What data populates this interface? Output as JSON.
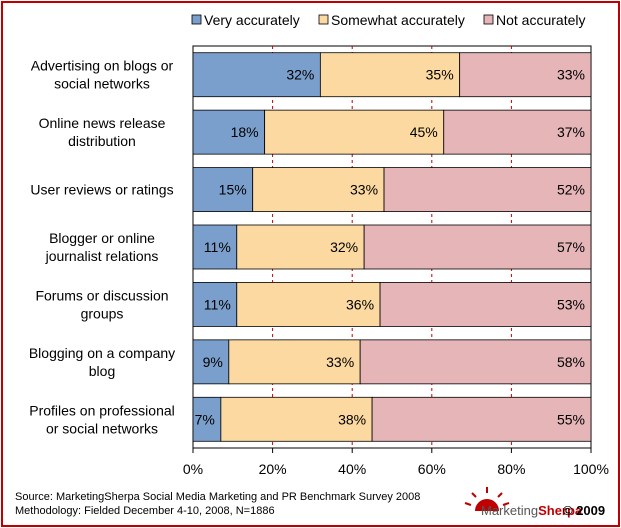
{
  "chart_data": {
    "type": "bar",
    "orientation": "horizontal",
    "stacked": true,
    "categories": [
      [
        "Advertising on blogs or",
        "social networks"
      ],
      [
        "Online news release",
        "distribution"
      ],
      [
        "User reviews or ratings"
      ],
      [
        "Blogger or online",
        "journalist relations"
      ],
      [
        "Forums or discussion",
        "groups"
      ],
      [
        "Blogging on a company",
        "blog"
      ],
      [
        "Profiles on professional",
        "or social networks"
      ]
    ],
    "series": [
      {
        "name": "Very accurately",
        "color": "#7a9fcc",
        "values": [
          32,
          18,
          15,
          11,
          11,
          9,
          7
        ]
      },
      {
        "name": "Somewhat accurately",
        "color": "#fbd9a0",
        "values": [
          35,
          45,
          33,
          32,
          36,
          33,
          38
        ]
      },
      {
        "name": "Not accurately",
        "color": "#e5b5b8",
        "values": [
          33,
          37,
          52,
          57,
          53,
          58,
          55
        ]
      }
    ],
    "value_labels": [
      [
        "32%",
        "18%",
        "15%",
        "11%",
        "11%",
        "9%",
        "7%"
      ],
      [
        "35%",
        "45%",
        "33%",
        "32%",
        "36%",
        "33%",
        "38%"
      ],
      [
        "33%",
        "37%",
        "52%",
        "57%",
        "53%",
        "58%",
        "55%"
      ]
    ],
    "xlim": [
      0,
      100
    ],
    "xticks": [
      "0%",
      "20%",
      "40%",
      "60%",
      "80%",
      "100%"
    ],
    "legend_position": "top",
    "grid": "dashed-vertical"
  },
  "source": {
    "line1": "Source: MarketingSherpa Social Media Marketing and PR Benchmark Survey 2008",
    "line2": "Methodology: Fielded December 4-10, 2008, N=1886"
  },
  "brand": {
    "name_part1": "Marketing",
    "name_part2": "Sherpa",
    "copyright": "© 2009",
    "accent_color": "#c00000"
  }
}
